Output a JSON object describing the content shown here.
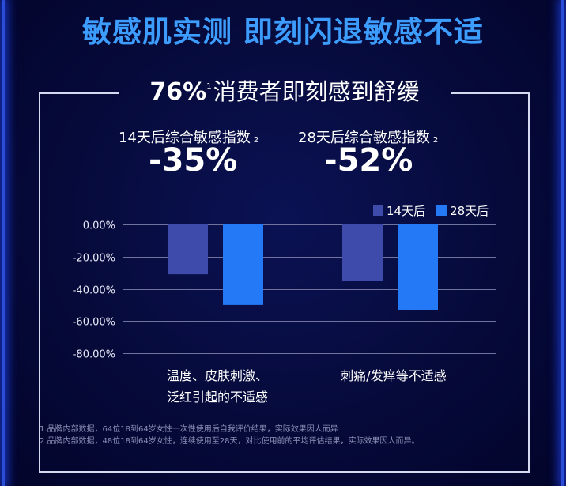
{
  "headline": "敏感肌实测 即刻闪退敏感不适",
  "panel": {
    "heading": {
      "percent": "76%",
      "ref": "1",
      "text": "消费者即刻感到舒缓"
    },
    "stats": [
      {
        "label": "14天后综合敏感指数",
        "ref": "2",
        "value": "-35%"
      },
      {
        "label": "28天后综合敏感指数",
        "ref": "2",
        "value": "-52%"
      }
    ]
  },
  "chart_data": {
    "type": "bar",
    "categories": [
      "温度、皮肤刺激、\n泛红引起的不适感",
      "刺痛/发痒等不适感"
    ],
    "series": [
      {
        "name": "14天后",
        "values": [
          -31,
          -35
        ]
      },
      {
        "name": "28天后",
        "values": [
          -50,
          -53
        ]
      }
    ],
    "ylim": [
      -80,
      0
    ],
    "y_ticks": [
      0,
      -20,
      -40,
      -60,
      -80
    ],
    "y_tick_labels": [
      "0.00%",
      "-20.00%",
      "-40.00%",
      "-60.00%",
      "-80.00%"
    ],
    "grid": true,
    "legend": "top-right"
  },
  "notes": [
    "1.品牌内部数据，64位18到64岁女性一次性使用后自我评价结果，实际效果因人而异",
    "2.品牌内部数据，48位18到64岁女性，连续使用至28天，对比使用前的平均评估结果，实际效果因人而异。"
  ],
  "colors": {
    "headline": "#3d9dff",
    "series_14d": "#3e4bab",
    "series_28d": "#2479f6",
    "grid": "#6f739d",
    "background": "#050835"
  }
}
